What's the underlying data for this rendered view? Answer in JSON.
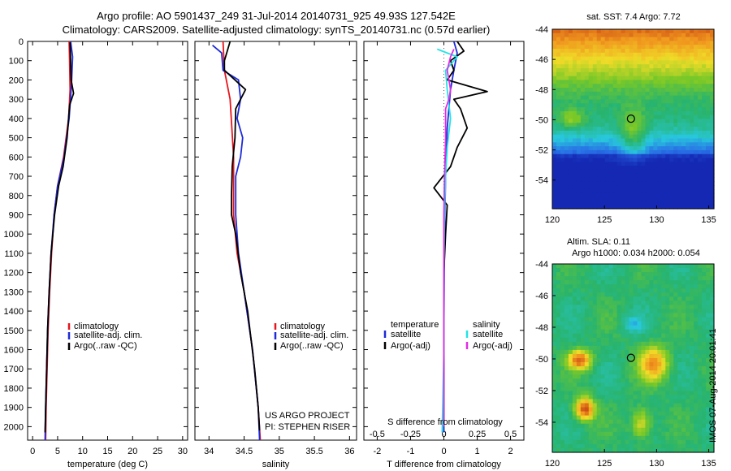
{
  "header": {
    "line1": "Argo profile: AO 5901437_249 31-Jul-2014 20140731_925 49.93S 127.542E",
    "line2": "Climatology: CARS2009. Satellite-adjusted climatology: synTS_20140731.nc (0.57d earlier)"
  },
  "colors": {
    "climatology": "#e8141b",
    "satellite": "#1d2ad8",
    "argo": "#000000",
    "sat_sal": "#22e3e6",
    "argo_sal": "#e22be6"
  },
  "chart_data": [
    {
      "type": "line",
      "xlabel": "temperature (deg C)",
      "ylabel": "",
      "xlim": [
        -1,
        31
      ],
      "ylim": [
        2070,
        0
      ],
      "xticks": [
        "0",
        "5",
        "10",
        "15",
        "20",
        "25",
        "30"
      ],
      "xtick_values": [
        0,
        5,
        10,
        15,
        20,
        25,
        30
      ],
      "yticks": [
        "0",
        "100",
        "200",
        "300",
        "400",
        "500",
        "600",
        "700",
        "800",
        "900",
        "1000",
        "1100",
        "1200",
        "1300",
        "1400",
        "1500",
        "1600",
        "1700",
        "1800",
        "1900",
        "2000"
      ],
      "ytick_values": [
        0,
        100,
        200,
        300,
        400,
        500,
        600,
        700,
        800,
        900,
        1000,
        1100,
        1200,
        1300,
        1400,
        1500,
        1600,
        1700,
        1800,
        1900,
        2000
      ],
      "legend": [
        "climatology",
        "satellite-adj. clim.",
        "Argo(..raw -QC)"
      ],
      "series": [
        {
          "name": "climatology",
          "color": "#e8141b",
          "points": [
            [
              7.3,
              0
            ],
            [
              7.4,
              100
            ],
            [
              7.5,
              250
            ],
            [
              7.2,
              400
            ],
            [
              6.2,
              600
            ],
            [
              5.0,
              750
            ],
            [
              4.3,
              900
            ],
            [
              3.8,
              1100
            ],
            [
              3.4,
              1300
            ],
            [
              3.1,
              1500
            ],
            [
              2.9,
              1700
            ],
            [
              2.7,
              1900
            ],
            [
              2.6,
              2070
            ]
          ]
        },
        {
          "name": "satellite-adj. clim.",
          "color": "#1d2ad8",
          "points": [
            [
              7.6,
              0
            ],
            [
              8.0,
              80
            ],
            [
              7.8,
              200
            ],
            [
              7.7,
              250
            ],
            [
              7.3,
              400
            ],
            [
              6.3,
              600
            ],
            [
              5.0,
              750
            ],
            [
              4.3,
              900
            ],
            [
              3.7,
              1100
            ],
            [
              3.3,
              1300
            ],
            [
              3.0,
              1500
            ],
            [
              2.8,
              1700
            ],
            [
              2.6,
              1900
            ],
            [
              2.5,
              2070
            ]
          ]
        },
        {
          "name": "Argo(..raw -QC)",
          "color": "#000000",
          "points": [
            [
              7.5,
              5
            ],
            [
              7.6,
              100
            ],
            [
              7.7,
              200
            ],
            [
              8.2,
              270
            ],
            [
              7.4,
              330
            ],
            [
              6.9,
              500
            ],
            [
              6.1,
              650
            ],
            [
              5.2,
              750
            ],
            [
              4.4,
              900
            ],
            [
              3.7,
              1100
            ],
            [
              3.3,
              1300
            ],
            [
              3.0,
              1500
            ],
            [
              2.8,
              1700
            ],
            [
              2.6,
              1900
            ],
            [
              2.5,
              2030
            ]
          ]
        }
      ]
    },
    {
      "type": "line",
      "xlabel": "salinity",
      "ylabel": "",
      "xlim": [
        33.8,
        36.1
      ],
      "ylim": [
        2070,
        0
      ],
      "xticks": [
        "34",
        "34.5",
        "35",
        "35.5",
        "36"
      ],
      "xtick_values": [
        34,
        34.5,
        35,
        35.5,
        36
      ],
      "legend": [
        "climatology",
        "satellite-adj. clim.",
        "Argo(..raw -QC)"
      ],
      "annotation": [
        "US ARGO PROJECT",
        "PI: STEPHEN RISER"
      ],
      "series": [
        {
          "name": "climatology",
          "color": "#e8141b",
          "points": [
            [
              34.2,
              0
            ],
            [
              34.22,
              150
            ],
            [
              34.3,
              300
            ],
            [
              34.35,
              600
            ],
            [
              34.35,
              900
            ],
            [
              34.4,
              1100
            ],
            [
              34.5,
              1300
            ],
            [
              34.62,
              1600
            ],
            [
              34.7,
              1900
            ],
            [
              34.73,
              2070
            ]
          ]
        },
        {
          "name": "satellite-adj. clim.",
          "color": "#1d2ad8",
          "points": [
            [
              34.05,
              20
            ],
            [
              34.18,
              60
            ],
            [
              34.2,
              150
            ],
            [
              34.42,
              200
            ],
            [
              34.45,
              300
            ],
            [
              34.4,
              400
            ],
            [
              34.48,
              500
            ],
            [
              34.45,
              600
            ],
            [
              34.38,
              700
            ],
            [
              34.38,
              900
            ],
            [
              34.42,
              1100
            ],
            [
              34.5,
              1300
            ],
            [
              34.62,
              1600
            ],
            [
              34.7,
              1900
            ],
            [
              34.72,
              2070
            ]
          ]
        },
        {
          "name": "Argo(..raw -QC)",
          "color": "#000000",
          "points": [
            [
              34.3,
              0
            ],
            [
              34.22,
              100
            ],
            [
              34.22,
              150
            ],
            [
              34.52,
              250
            ],
            [
              34.38,
              350
            ],
            [
              34.37,
              500
            ],
            [
              34.33,
              650
            ],
            [
              34.32,
              800
            ],
            [
              34.32,
              900
            ],
            [
              34.38,
              1000
            ],
            [
              34.45,
              1200
            ],
            [
              34.55,
              1400
            ],
            [
              34.65,
              1700
            ],
            [
              34.7,
              1900
            ],
            [
              34.72,
              2020
            ]
          ]
        }
      ]
    },
    {
      "type": "line",
      "xlabel": "T difference from climatology",
      "xlabel2": "S difference from climatology",
      "xlim": [
        -2.4,
        2.4
      ],
      "ylim": [
        2070,
        0
      ],
      "xticks": [
        "-2",
        "-1",
        "0",
        "1",
        "2"
      ],
      "xtick_values": [
        -2,
        -1,
        0,
        1,
        2
      ],
      "sticks": [
        "-0.5",
        "-0.25",
        "0",
        "0.25",
        "0.5"
      ],
      "stick_values": [
        -0.5,
        -0.25,
        0,
        0.25,
        0.5
      ],
      "s_scale": 4,
      "legend_left": {
        "title": "temperature",
        "items": [
          "satellite",
          "Argo(-adj)"
        ]
      },
      "legend_right": {
        "title": "salinity",
        "items": [
          "satellite",
          "Argo(-adj)"
        ]
      },
      "series": [
        {
          "name": "satellite",
          "color": "#1d2ad8",
          "points": [
            [
              0.3,
              0
            ],
            [
              0.4,
              60
            ],
            [
              0.3,
              150
            ],
            [
              0.2,
              250
            ],
            [
              0.1,
              450
            ],
            [
              0.05,
              700
            ],
            [
              0.02,
              1000
            ],
            [
              0,
              1500
            ],
            [
              0,
              2030
            ]
          ]
        },
        {
          "name": "Argo(-adj)",
          "color": "#000000",
          "points": [
            [
              0.4,
              0
            ],
            [
              0.6,
              50
            ],
            [
              0.2,
              100
            ],
            [
              0.3,
              150
            ],
            [
              0.1,
              200
            ],
            [
              1.3,
              260
            ],
            [
              0.3,
              300
            ],
            [
              0.5,
              350
            ],
            [
              0.7,
              450
            ],
            [
              0.4,
              550
            ],
            [
              0.2,
              650
            ],
            [
              -0.3,
              760
            ],
            [
              0.1,
              850
            ],
            [
              0.05,
              1000
            ],
            [
              0,
              1200
            ],
            [
              0,
              1500
            ],
            [
              0,
              2000
            ]
          ]
        },
        {
          "name": "salinity satellite",
          "color": "#22e3e6",
          "points": [
            [
              -0.2,
              40
            ],
            [
              0.4,
              80
            ],
            [
              0.05,
              150
            ],
            [
              0.1,
              250
            ],
            [
              0.2,
              400
            ],
            [
              0.1,
              550
            ],
            [
              0.05,
              700
            ],
            [
              0.02,
              900
            ],
            [
              0,
              1200
            ],
            [
              0,
              1600
            ],
            [
              -0.05,
              2030
            ]
          ]
        },
        {
          "name": "salinity Argo(-adj)",
          "color": "#e22be6",
          "points": [
            [
              0.3,
              40
            ],
            [
              0.2,
              80
            ],
            [
              0.1,
              150
            ],
            [
              0.2,
              250
            ],
            [
              0.15,
              300
            ],
            [
              0.05,
              350
            ],
            [
              0.05,
              500
            ],
            [
              0.02,
              700
            ],
            [
              0,
              900
            ],
            [
              0,
              1200
            ],
            [
              0,
              1600
            ],
            [
              0,
              2000
            ]
          ]
        }
      ]
    },
    {
      "type": "heatmap",
      "title": "sat. SST: 7.4 Argo: 7.72",
      "xlim": [
        120,
        135.5
      ],
      "ylim": [
        -55.9,
        -44
      ],
      "xticks": [
        "120",
        "125",
        "130",
        "135"
      ],
      "xtick_values": [
        120,
        125,
        130,
        135
      ],
      "yticks": [
        "-44",
        "-46",
        "-48",
        "-50",
        "-52",
        "-54"
      ],
      "ytick_values": [
        -44,
        -46,
        -48,
        -50,
        -52,
        -54
      ],
      "marker": [
        127.542,
        -49.93
      ]
    },
    {
      "type": "heatmap",
      "title": "Altim. SLA: 0.11",
      "subtitle": "Argo h1000: 0.034 h2000: 0.054",
      "xlim": [
        120,
        135.5
      ],
      "ylim": [
        -55.9,
        -44
      ],
      "xticks": [
        "120",
        "125",
        "130",
        "135"
      ],
      "xtick_values": [
        120,
        125,
        130,
        135
      ],
      "yticks": [
        "-44",
        "-46",
        "-48",
        "-50",
        "-52",
        "-54"
      ],
      "ytick_values": [
        -44,
        -46,
        -48,
        -50,
        -52,
        -54
      ],
      "marker": [
        127.542,
        -49.93
      ]
    }
  ],
  "stamp": "IMOS 07-Aug-2014 20:01:41"
}
